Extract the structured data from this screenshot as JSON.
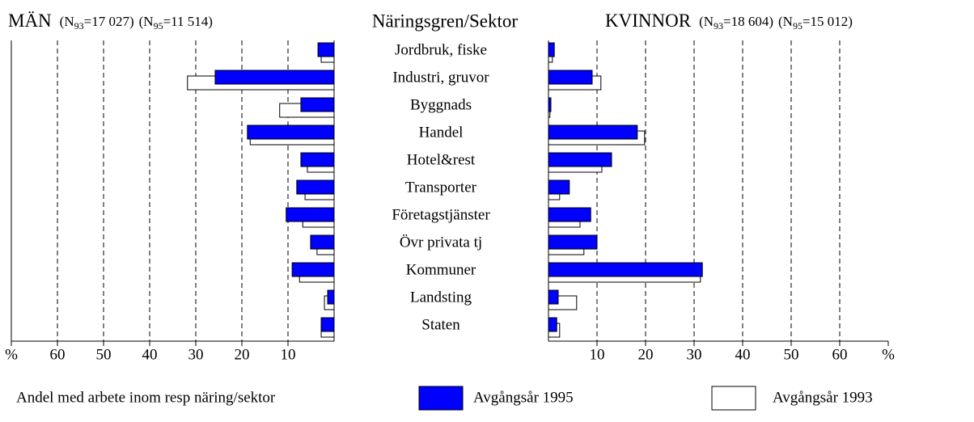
{
  "chart_data": [
    {
      "type": "hbar",
      "title": "MÄN",
      "n_notes": [
        {
          "open": "(N",
          "sub": "93",
          "rest": "=17 027)"
        },
        {
          "open": "(N",
          "sub": "95",
          "rest": "=11 514)"
        }
      ],
      "category_label": "Näringsgren/Sektor",
      "categories": [
        "Jordbruk,  fiske",
        "Industri, gruvor",
        "Byggnads",
        "Handel",
        "Hotel&rest",
        "Transporter",
        "Företagstjänster",
        "Övr privata tj",
        "Kommuner",
        "Landsting",
        "Staten"
      ],
      "direction": "left",
      "outer_border": true,
      "xlim": [
        0,
        70
      ],
      "xticks": [
        {
          "value": 70,
          "label": "%"
        },
        60,
        50,
        40,
        30,
        20,
        10
      ],
      "grid": true,
      "series": [
        {
          "name": "Avgångsår 1993",
          "color": "#ffffff",
          "values": [
            2.8,
            31.8,
            11.8,
            18.2,
            5.8,
            6.3,
            6.8,
            3.7,
            7.5,
            2.1,
            2.8
          ]
        },
        {
          "name": "Avgångsår 1995",
          "color": "#0000ff",
          "values": [
            3.5,
            25.8,
            7.2,
            18.8,
            7.2,
            8.1,
            10.4,
            5.1,
            9.1,
            1.4,
            2.8
          ]
        }
      ]
    },
    {
      "type": "hbar",
      "title": "KVINNOR",
      "n_notes": [
        {
          "open": "(N",
          "sub": "93",
          "rest": "=18 604)"
        },
        {
          "open": "(N",
          "sub": "95",
          "rest": "=15 012)"
        }
      ],
      "direction": "right",
      "outer_border": false,
      "xlim": [
        0,
        70
      ],
      "xticks": [
        10,
        20,
        30,
        40,
        50,
        60,
        {
          "value": 70,
          "label": "%"
        }
      ],
      "grid": true,
      "series": [
        {
          "color": "#ffffff",
          "values": [
            0.8,
            10.8,
            0.3,
            19.8,
            11.0,
            2.3,
            6.5,
            7.3,
            31.3,
            5.8,
            2.3
          ]
        },
        {
          "color": "#0000ff",
          "values": [
            1.2,
            9.0,
            0.5,
            18.3,
            13.0,
            4.3,
            8.7,
            10.0,
            31.7,
            2.0,
            1.7
          ]
        }
      ]
    }
  ],
  "legend": {
    "title": "Andel med arbete inom resp näring/sektor"
  }
}
